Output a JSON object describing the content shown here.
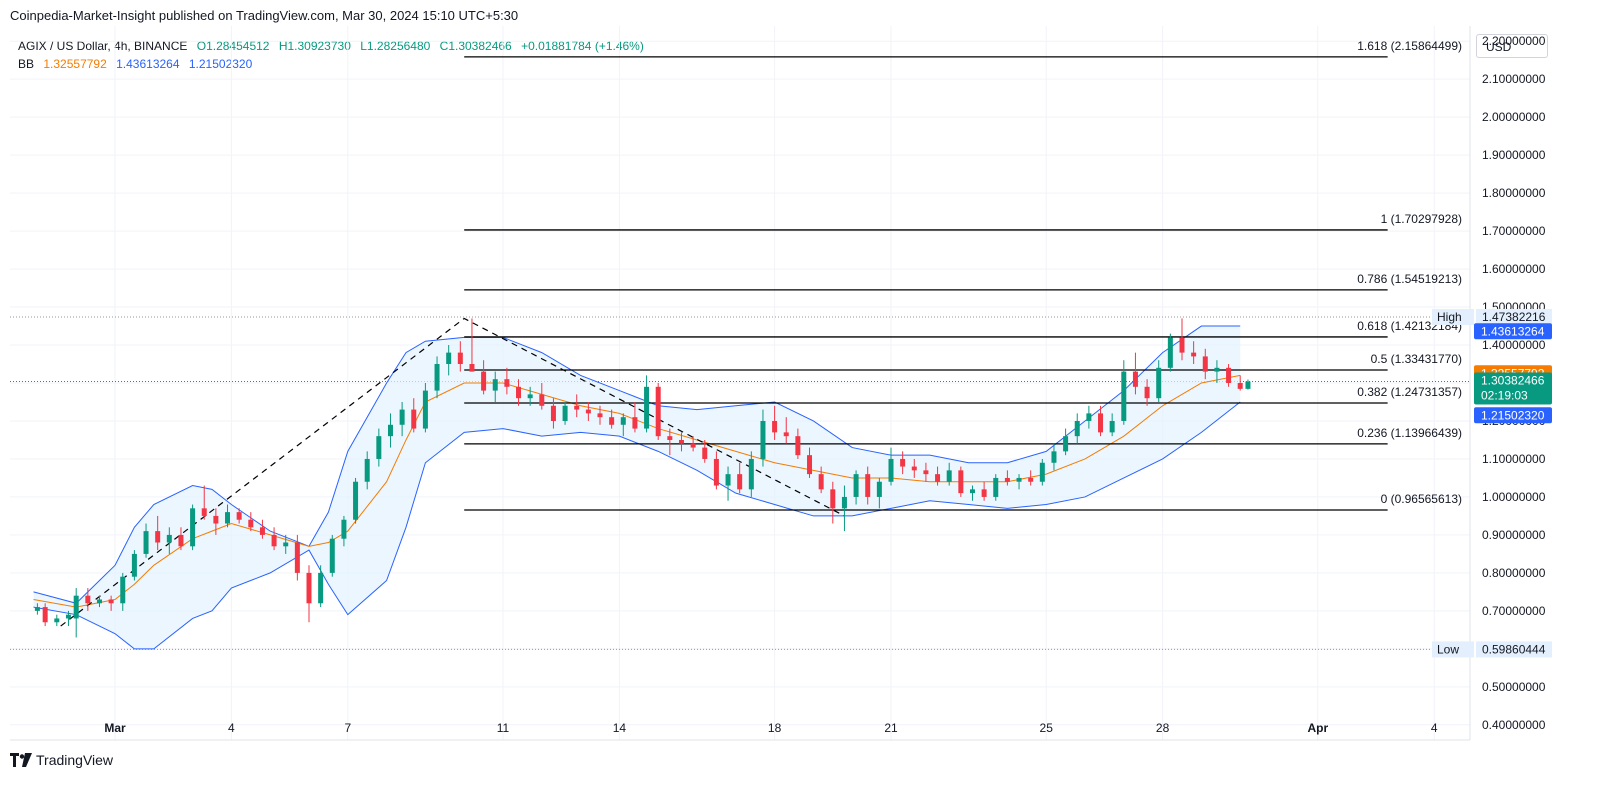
{
  "header": {
    "published": "Coinpedia-Market-Insight published on TradingView.com, Mar 30, 2024 15:10 UTC+5:30"
  },
  "legend": {
    "symbol": "AGIX / US Dollar, 4h, BINANCE",
    "open": "O1.28454512",
    "high": "H1.30923730",
    "low": "L1.28256480",
    "close": "C1.30382466",
    "change": "+0.01881784 (+1.46%)",
    "bb_label": "BB",
    "bb_basis": "1.32557792",
    "bb_upper": "1.43613264",
    "bb_lower": "1.21502320"
  },
  "currency": "USD",
  "footer": {
    "brand": "TradingView"
  },
  "colors": {
    "up": "#089981",
    "down": "#f23645",
    "basis": "#f57c00",
    "bands": "#2962ff",
    "band_fill": "#e3f2fd",
    "fib": "#000000"
  },
  "chart_data": {
    "type": "candlestick",
    "y_axis": {
      "min": 0.36,
      "max": 2.24,
      "ticks": [
        "2.20000000",
        "2.10000000",
        "2.00000000",
        "1.90000000",
        "1.80000000",
        "1.70000000",
        "1.60000000",
        "1.50000000",
        "1.40000000",
        "1.30000000",
        "1.20000000",
        "1.10000000",
        "1.00000000",
        "0.90000000",
        "0.80000000",
        "0.70000000",
        "0.60000000",
        "0.50000000",
        "0.40000000"
      ],
      "tick_values": [
        2.2,
        2.1,
        2.0,
        1.9,
        1.8,
        1.7,
        1.6,
        1.5,
        1.4,
        1.3,
        1.2,
        1.1,
        1.0,
        0.9,
        0.8,
        0.7,
        0.6,
        0.5,
        0.4
      ]
    },
    "x_axis": {
      "start_day": -1.1,
      "end_day": 34.0,
      "labels": [
        {
          "text": "Mar",
          "day": 1
        },
        {
          "text": "4",
          "day": 4
        },
        {
          "text": "7",
          "day": 7
        },
        {
          "text": "11",
          "day": 11
        },
        {
          "text": "14",
          "day": 14
        },
        {
          "text": "18",
          "day": 18
        },
        {
          "text": "21",
          "day": 21
        },
        {
          "text": "25",
          "day": 25
        },
        {
          "text": "28",
          "day": 28
        },
        {
          "text": "Apr",
          "day": 32
        },
        {
          "text": "4",
          "day": 35
        }
      ]
    },
    "price_labels": [
      {
        "name": "High",
        "value": "1.47382216",
        "price": 1.47382216,
        "style": "plain"
      },
      {
        "name": "",
        "value": "1.43613264",
        "price": 1.43613264,
        "style": "blue"
      },
      {
        "name": "",
        "value": "1.32557792",
        "price": 1.32557792,
        "style": "orange"
      },
      {
        "name": "",
        "value": "1.30382466",
        "price": 1.30382466,
        "style": "green",
        "countdown": "02:19:03"
      },
      {
        "name": "",
        "value": "1.21502320",
        "price": 1.2150232,
        "style": "blue"
      },
      {
        "name": "Low",
        "value": "0.59860444",
        "price": 0.59860444,
        "style": "plain"
      }
    ],
    "fib_levels": [
      {
        "label": "1.618 (2.15864499)",
        "price": 2.15864499
      },
      {
        "label": "1 (1.70297928)",
        "price": 1.70297928
      },
      {
        "label": "0.786 (1.54519213)",
        "price": 1.54519213
      },
      {
        "label": "0.618 (1.42132184)",
        "price": 1.42132184
      },
      {
        "label": "0.5 (1.33431770)",
        "price": 1.3343177
      },
      {
        "label": "0.382 (1.24731357)",
        "price": 1.24731357
      },
      {
        "label": "0.236 (1.13966439)",
        "price": 1.13966439
      },
      {
        "label": "0 (0.96565613)",
        "price": 0.96565613
      }
    ],
    "fib_range_days": [
      10,
      33.8
    ],
    "trend_line": [
      [
        -0.4,
        0.66
      ],
      [
        10.0,
        1.47
      ],
      [
        19.8,
        0.95
      ]
    ],
    "bollinger": {
      "days": [
        -1.1,
        0,
        1,
        1.5,
        2,
        3,
        3.5,
        4,
        5,
        6,
        6.5,
        7,
        8,
        8.5,
        9,
        10,
        11,
        12,
        13,
        14,
        15,
        16,
        17,
        18,
        19,
        20,
        21,
        22,
        23,
        24,
        25,
        26,
        27,
        28,
        29,
        30
      ],
      "upper": [
        0.75,
        0.72,
        0.82,
        0.92,
        0.98,
        1.03,
        1.02,
        0.98,
        0.91,
        0.87,
        0.96,
        1.12,
        1.3,
        1.38,
        1.41,
        1.42,
        1.42,
        1.38,
        1.32,
        1.28,
        1.24,
        1.23,
        1.24,
        1.25,
        1.2,
        1.13,
        1.11,
        1.11,
        1.09,
        1.09,
        1.12,
        1.2,
        1.28,
        1.38,
        1.45,
        1.45
      ],
      "basis": [
        0.73,
        0.71,
        0.73,
        0.77,
        0.82,
        0.89,
        0.91,
        0.93,
        0.9,
        0.87,
        0.88,
        0.91,
        1.04,
        1.15,
        1.25,
        1.3,
        1.3,
        1.27,
        1.24,
        1.22,
        1.18,
        1.15,
        1.12,
        1.09,
        1.07,
        1.05,
        1.05,
        1.04,
        1.04,
        1.04,
        1.06,
        1.1,
        1.16,
        1.24,
        1.3,
        1.32
      ],
      "lower": [
        0.71,
        0.69,
        0.64,
        0.6,
        0.6,
        0.68,
        0.7,
        0.76,
        0.8,
        0.86,
        0.77,
        0.69,
        0.78,
        0.92,
        1.09,
        1.17,
        1.18,
        1.16,
        1.17,
        1.16,
        1.12,
        1.07,
        1.01,
        0.98,
        0.95,
        0.95,
        0.97,
        0.99,
        0.98,
        0.97,
        0.98,
        1.0,
        1.05,
        1.1,
        1.17,
        1.25
      ]
    },
    "candles": [
      {
        "d": -1.0,
        "o": 0.7,
        "h": 0.72,
        "l": 0.69,
        "c": 0.71
      },
      {
        "d": -0.8,
        "o": 0.71,
        "h": 0.72,
        "l": 0.66,
        "c": 0.67
      },
      {
        "d": -0.5,
        "o": 0.67,
        "h": 0.69,
        "l": 0.66,
        "c": 0.68
      },
      {
        "d": -0.2,
        "o": 0.68,
        "h": 0.7,
        "l": 0.66,
        "c": 0.69
      },
      {
        "d": 0.0,
        "o": 0.68,
        "h": 0.76,
        "l": 0.63,
        "c": 0.74
      },
      {
        "d": 0.3,
        "o": 0.74,
        "h": 0.76,
        "l": 0.7,
        "c": 0.72
      },
      {
        "d": 0.6,
        "o": 0.72,
        "h": 0.74,
        "l": 0.71,
        "c": 0.73
      },
      {
        "d": 0.9,
        "o": 0.73,
        "h": 0.74,
        "l": 0.7,
        "c": 0.72
      },
      {
        "d": 1.2,
        "o": 0.72,
        "h": 0.8,
        "l": 0.7,
        "c": 0.79
      },
      {
        "d": 1.5,
        "o": 0.79,
        "h": 0.86,
        "l": 0.78,
        "c": 0.85
      },
      {
        "d": 1.8,
        "o": 0.85,
        "h": 0.93,
        "l": 0.84,
        "c": 0.91
      },
      {
        "d": 2.1,
        "o": 0.91,
        "h": 0.95,
        "l": 0.86,
        "c": 0.88
      },
      {
        "d": 2.4,
        "o": 0.88,
        "h": 0.92,
        "l": 0.85,
        "c": 0.9
      },
      {
        "d": 2.7,
        "o": 0.9,
        "h": 0.92,
        "l": 0.86,
        "c": 0.87
      },
      {
        "d": 3.0,
        "o": 0.87,
        "h": 0.98,
        "l": 0.86,
        "c": 0.97
      },
      {
        "d": 3.3,
        "o": 0.97,
        "h": 1.03,
        "l": 0.94,
        "c": 0.95
      },
      {
        "d": 3.6,
        "o": 0.95,
        "h": 0.97,
        "l": 0.9,
        "c": 0.93
      },
      {
        "d": 3.9,
        "o": 0.93,
        "h": 0.98,
        "l": 0.92,
        "c": 0.96
      },
      {
        "d": 4.2,
        "o": 0.96,
        "h": 0.97,
        "l": 0.93,
        "c": 0.94
      },
      {
        "d": 4.5,
        "o": 0.94,
        "h": 0.96,
        "l": 0.91,
        "c": 0.92
      },
      {
        "d": 4.8,
        "o": 0.92,
        "h": 0.94,
        "l": 0.89,
        "c": 0.9
      },
      {
        "d": 5.1,
        "o": 0.9,
        "h": 0.92,
        "l": 0.86,
        "c": 0.87
      },
      {
        "d": 5.4,
        "o": 0.87,
        "h": 0.9,
        "l": 0.85,
        "c": 0.88
      },
      {
        "d": 5.7,
        "o": 0.88,
        "h": 0.9,
        "l": 0.78,
        "c": 0.8
      },
      {
        "d": 6.0,
        "o": 0.8,
        "h": 0.82,
        "l": 0.67,
        "c": 0.72
      },
      {
        "d": 6.3,
        "o": 0.72,
        "h": 0.82,
        "l": 0.71,
        "c": 0.8
      },
      {
        "d": 6.6,
        "o": 0.8,
        "h": 0.9,
        "l": 0.79,
        "c": 0.89
      },
      {
        "d": 6.9,
        "o": 0.89,
        "h": 0.95,
        "l": 0.87,
        "c": 0.94
      },
      {
        "d": 7.2,
        "o": 0.94,
        "h": 1.05,
        "l": 0.93,
        "c": 1.04
      },
      {
        "d": 7.5,
        "o": 1.04,
        "h": 1.12,
        "l": 1.02,
        "c": 1.1
      },
      {
        "d": 7.8,
        "o": 1.1,
        "h": 1.18,
        "l": 1.08,
        "c": 1.16
      },
      {
        "d": 8.1,
        "o": 1.16,
        "h": 1.22,
        "l": 1.13,
        "c": 1.19
      },
      {
        "d": 8.4,
        "o": 1.19,
        "h": 1.25,
        "l": 1.16,
        "c": 1.23
      },
      {
        "d": 8.7,
        "o": 1.23,
        "h": 1.26,
        "l": 1.17,
        "c": 1.18
      },
      {
        "d": 9.0,
        "o": 1.18,
        "h": 1.3,
        "l": 1.17,
        "c": 1.28
      },
      {
        "d": 9.3,
        "o": 1.28,
        "h": 1.37,
        "l": 1.26,
        "c": 1.35
      },
      {
        "d": 9.6,
        "o": 1.35,
        "h": 1.4,
        "l": 1.32,
        "c": 1.38
      },
      {
        "d": 9.9,
        "o": 1.38,
        "h": 1.41,
        "l": 1.33,
        "c": 1.35
      },
      {
        "d": 10.2,
        "o": 1.35,
        "h": 1.47,
        "l": 1.33,
        "c": 1.33
      },
      {
        "d": 10.5,
        "o": 1.33,
        "h": 1.36,
        "l": 1.27,
        "c": 1.28
      },
      {
        "d": 10.8,
        "o": 1.28,
        "h": 1.33,
        "l": 1.25,
        "c": 1.31
      },
      {
        "d": 11.1,
        "o": 1.31,
        "h": 1.34,
        "l": 1.27,
        "c": 1.29
      },
      {
        "d": 11.4,
        "o": 1.29,
        "h": 1.31,
        "l": 1.24,
        "c": 1.26
      },
      {
        "d": 11.7,
        "o": 1.26,
        "h": 1.29,
        "l": 1.24,
        "c": 1.27
      },
      {
        "d": 12.0,
        "o": 1.27,
        "h": 1.3,
        "l": 1.23,
        "c": 1.24
      },
      {
        "d": 12.3,
        "o": 1.24,
        "h": 1.26,
        "l": 1.18,
        "c": 1.2
      },
      {
        "d": 12.6,
        "o": 1.2,
        "h": 1.25,
        "l": 1.19,
        "c": 1.24
      },
      {
        "d": 12.9,
        "o": 1.24,
        "h": 1.27,
        "l": 1.21,
        "c": 1.23
      },
      {
        "d": 13.2,
        "o": 1.23,
        "h": 1.25,
        "l": 1.2,
        "c": 1.22
      },
      {
        "d": 13.5,
        "o": 1.22,
        "h": 1.24,
        "l": 1.19,
        "c": 1.21
      },
      {
        "d": 13.8,
        "o": 1.21,
        "h": 1.23,
        "l": 1.18,
        "c": 1.19
      },
      {
        "d": 14.1,
        "o": 1.19,
        "h": 1.22,
        "l": 1.16,
        "c": 1.21
      },
      {
        "d": 14.4,
        "o": 1.21,
        "h": 1.25,
        "l": 1.17,
        "c": 1.18
      },
      {
        "d": 14.7,
        "o": 1.18,
        "h": 1.32,
        "l": 1.17,
        "c": 1.29
      },
      {
        "d": 15.0,
        "o": 1.29,
        "h": 1.3,
        "l": 1.15,
        "c": 1.16
      },
      {
        "d": 15.3,
        "o": 1.16,
        "h": 1.18,
        "l": 1.11,
        "c": 1.15
      },
      {
        "d": 15.6,
        "o": 1.15,
        "h": 1.17,
        "l": 1.12,
        "c": 1.14
      },
      {
        "d": 15.9,
        "o": 1.14,
        "h": 1.16,
        "l": 1.12,
        "c": 1.13
      },
      {
        "d": 16.2,
        "o": 1.13,
        "h": 1.15,
        "l": 1.09,
        "c": 1.1
      },
      {
        "d": 16.5,
        "o": 1.1,
        "h": 1.12,
        "l": 1.02,
        "c": 1.03
      },
      {
        "d": 16.8,
        "o": 1.03,
        "h": 1.08,
        "l": 0.99,
        "c": 1.06
      },
      {
        "d": 17.1,
        "o": 1.06,
        "h": 1.09,
        "l": 1.01,
        "c": 1.02
      },
      {
        "d": 17.4,
        "o": 1.02,
        "h": 1.12,
        "l": 1.0,
        "c": 1.1
      },
      {
        "d": 17.7,
        "o": 1.1,
        "h": 1.23,
        "l": 1.08,
        "c": 1.2
      },
      {
        "d": 18.0,
        "o": 1.2,
        "h": 1.24,
        "l": 1.15,
        "c": 1.17
      },
      {
        "d": 18.3,
        "o": 1.17,
        "h": 1.21,
        "l": 1.14,
        "c": 1.16
      },
      {
        "d": 18.6,
        "o": 1.16,
        "h": 1.18,
        "l": 1.1,
        "c": 1.11
      },
      {
        "d": 18.9,
        "o": 1.11,
        "h": 1.13,
        "l": 1.05,
        "c": 1.06
      },
      {
        "d": 19.2,
        "o": 1.06,
        "h": 1.08,
        "l": 1.01,
        "c": 1.02
      },
      {
        "d": 19.5,
        "o": 1.02,
        "h": 1.04,
        "l": 0.93,
        "c": 0.97
      },
      {
        "d": 19.8,
        "o": 0.97,
        "h": 1.03,
        "l": 0.91,
        "c": 1.0
      },
      {
        "d": 20.1,
        "o": 1.0,
        "h": 1.07,
        "l": 0.98,
        "c": 1.06
      },
      {
        "d": 20.4,
        "o": 1.06,
        "h": 1.08,
        "l": 0.98,
        "c": 1.0
      },
      {
        "d": 20.7,
        "o": 1.0,
        "h": 1.05,
        "l": 0.97,
        "c": 1.04
      },
      {
        "d": 21.0,
        "o": 1.04,
        "h": 1.13,
        "l": 1.03,
        "c": 1.1
      },
      {
        "d": 21.3,
        "o": 1.1,
        "h": 1.12,
        "l": 1.06,
        "c": 1.08
      },
      {
        "d": 21.6,
        "o": 1.08,
        "h": 1.1,
        "l": 1.05,
        "c": 1.07
      },
      {
        "d": 21.9,
        "o": 1.07,
        "h": 1.09,
        "l": 1.04,
        "c": 1.06
      },
      {
        "d": 22.2,
        "o": 1.06,
        "h": 1.08,
        "l": 1.03,
        "c": 1.04
      },
      {
        "d": 22.5,
        "o": 1.04,
        "h": 1.09,
        "l": 1.03,
        "c": 1.07
      },
      {
        "d": 22.8,
        "o": 1.07,
        "h": 1.08,
        "l": 1.0,
        "c": 1.01
      },
      {
        "d": 23.1,
        "o": 1.01,
        "h": 1.03,
        "l": 0.99,
        "c": 1.02
      },
      {
        "d": 23.4,
        "o": 1.02,
        "h": 1.04,
        "l": 0.99,
        "c": 1.0
      },
      {
        "d": 23.7,
        "o": 1.0,
        "h": 1.06,
        "l": 0.99,
        "c": 1.05
      },
      {
        "d": 24.0,
        "o": 1.05,
        "h": 1.07,
        "l": 1.03,
        "c": 1.04
      },
      {
        "d": 24.3,
        "o": 1.04,
        "h": 1.06,
        "l": 1.02,
        "c": 1.05
      },
      {
        "d": 24.6,
        "o": 1.05,
        "h": 1.07,
        "l": 1.03,
        "c": 1.04
      },
      {
        "d": 24.9,
        "o": 1.04,
        "h": 1.1,
        "l": 1.03,
        "c": 1.09
      },
      {
        "d": 25.2,
        "o": 1.09,
        "h": 1.14,
        "l": 1.07,
        "c": 1.12
      },
      {
        "d": 25.5,
        "o": 1.12,
        "h": 1.18,
        "l": 1.11,
        "c": 1.16
      },
      {
        "d": 25.8,
        "o": 1.16,
        "h": 1.22,
        "l": 1.14,
        "c": 1.2
      },
      {
        "d": 26.1,
        "o": 1.2,
        "h": 1.24,
        "l": 1.18,
        "c": 1.22
      },
      {
        "d": 26.4,
        "o": 1.22,
        "h": 1.24,
        "l": 1.16,
        "c": 1.17
      },
      {
        "d": 26.7,
        "o": 1.17,
        "h": 1.22,
        "l": 1.16,
        "c": 1.2
      },
      {
        "d": 27.0,
        "o": 1.2,
        "h": 1.36,
        "l": 1.19,
        "c": 1.33
      },
      {
        "d": 27.3,
        "o": 1.33,
        "h": 1.38,
        "l": 1.27,
        "c": 1.29
      },
      {
        "d": 27.6,
        "o": 1.29,
        "h": 1.31,
        "l": 1.24,
        "c": 1.26
      },
      {
        "d": 27.9,
        "o": 1.26,
        "h": 1.36,
        "l": 1.25,
        "c": 1.34
      },
      {
        "d": 28.2,
        "o": 1.34,
        "h": 1.43,
        "l": 1.33,
        "c": 1.42
      },
      {
        "d": 28.5,
        "o": 1.42,
        "h": 1.47,
        "l": 1.36,
        "c": 1.38
      },
      {
        "d": 28.8,
        "o": 1.38,
        "h": 1.41,
        "l": 1.35,
        "c": 1.37
      },
      {
        "d": 29.1,
        "o": 1.37,
        "h": 1.39,
        "l": 1.31,
        "c": 1.33
      },
      {
        "d": 29.4,
        "o": 1.33,
        "h": 1.36,
        "l": 1.3,
        "c": 1.34
      },
      {
        "d": 29.7,
        "o": 1.34,
        "h": 1.35,
        "l": 1.29,
        "c": 1.3
      },
      {
        "d": 30.0,
        "o": 1.3,
        "h": 1.32,
        "l": 1.28,
        "c": 1.2846
      },
      {
        "d": 30.2,
        "o": 1.2846,
        "h": 1.3092,
        "l": 1.2826,
        "c": 1.3038
      }
    ]
  }
}
